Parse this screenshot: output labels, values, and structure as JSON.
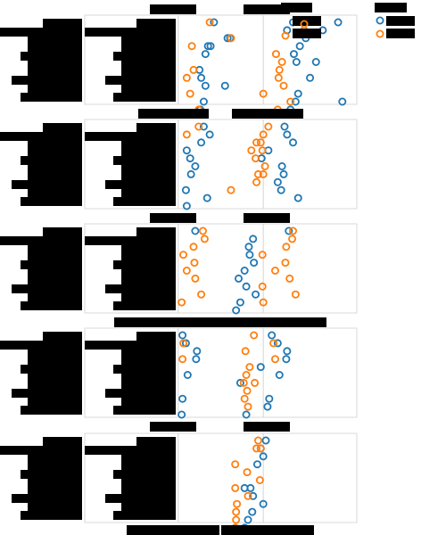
{
  "chart_data": {
    "type": "scatter",
    "colors": {
      "series_a": "#1f77b4",
      "series_b": "#ff7f0e",
      "redaction": "#000000",
      "frame": "#d9d9d9"
    },
    "legend": {
      "placement": "top-right",
      "title_redacted": true,
      "entries_redacted": true,
      "markers": [
        "series_a",
        "series_b"
      ]
    },
    "label_redaction_note_hidden": "",
    "panels": [
      {
        "series": [
          {
            "key": "series_a",
            "values": [
              [
                0.42,
                0
              ],
              [
                1.35,
                0
              ],
              [
                1.88,
                0
              ],
              [
                1.28,
                1
              ],
              [
                1.7,
                1
              ],
              [
                0.61,
                2
              ],
              [
                0.58,
                2
              ],
              [
                1.5,
                2
              ],
              [
                0.35,
                3
              ],
              [
                0.38,
                3
              ],
              [
                1.43,
                3
              ],
              [
                0.32,
                4
              ],
              [
                1.36,
                4
              ],
              [
                1.39,
                5
              ],
              [
                1.62,
                5
              ],
              [
                0.25,
                6
              ],
              [
                0.27,
                7
              ],
              [
                1.55,
                7
              ],
              [
                0.55,
                8
              ],
              [
                0.32,
                8
              ],
              [
                1.41,
                9
              ],
              [
                0.3,
                10
              ],
              [
                1.38,
                10
              ],
              [
                1.93,
                10
              ],
              [
                0.26,
                11
              ],
              [
                1.32,
                11
              ]
            ]
          },
          {
            "key": "series_b",
            "values": [
              [
                0.37,
                0
              ],
              [
                1.48,
                1
              ],
              [
                0.62,
                2
              ],
              [
                0.16,
                3
              ],
              [
                1.15,
                4
              ],
              [
                1.22,
                5
              ],
              [
                1.19,
                6
              ],
              [
                0.18,
                6
              ],
              [
                1.18,
                7
              ],
              [
                0.1,
                7
              ],
              [
                1.24,
                8
              ],
              [
                0.14,
                9
              ],
              [
                1.0,
                9
              ],
              [
                1.32,
                10
              ],
              [
                0.24,
                11
              ],
              [
                1.17,
                11
              ]
            ]
          }
        ]
      },
      {
        "series": [
          {
            "key": "series_a",
            "values": [
              [
                0.3,
                0
              ],
              [
                1.25,
                0
              ],
              [
                1.28,
                1
              ],
              [
                0.37,
                1
              ],
              [
                0.27,
                2
              ],
              [
                1.35,
                2
              ],
              [
                0.1,
                3
              ],
              [
                1.06,
                3
              ],
              [
                0.14,
                4
              ],
              [
                0.98,
                4
              ],
              [
                1.22,
                5
              ],
              [
                0.2,
                5
              ],
              [
                1.24,
                6
              ],
              [
                0.15,
                6
              ],
              [
                1.17,
                7
              ],
              [
                0.09,
                8
              ],
              [
                1.21,
                8
              ],
              [
                0.34,
                9
              ],
              [
                1.41,
                9
              ],
              [
                0.1,
                10
              ]
            ]
          },
          {
            "key": "series_b",
            "values": [
              [
                0.24,
                0
              ],
              [
                1.06,
                0
              ],
              [
                0.1,
                1
              ],
              [
                1.0,
                1
              ],
              [
                0.92,
                2
              ],
              [
                0.97,
                2
              ],
              [
                0.86,
                3
              ],
              [
                0.99,
                3
              ],
              [
                0.91,
                4
              ],
              [
                1.02,
                5
              ],
              [
                0.94,
                6
              ],
              [
                1.0,
                6
              ],
              [
                0.92,
                7
              ],
              [
                0.62,
                8
              ]
            ]
          }
        ]
      },
      {
        "series": [
          {
            "key": "series_a",
            "values": [
              [
                0.2,
                0
              ],
              [
                1.3,
                0
              ],
              [
                0.88,
                1
              ],
              [
                0.83,
                2
              ],
              [
                0.84,
                3
              ],
              [
                0.89,
                4
              ],
              [
                0.78,
                5
              ],
              [
                0.71,
                6
              ],
              [
                0.8,
                7
              ],
              [
                0.91,
                8
              ],
              [
                0.73,
                9
              ],
              [
                0.68,
                10
              ]
            ]
          },
          {
            "key": "series_b",
            "values": [
              [
                0.29,
                0
              ],
              [
                1.35,
                0
              ],
              [
                0.31,
                1
              ],
              [
                1.34,
                1
              ],
              [
                0.18,
                2
              ],
              [
                1.27,
                2
              ],
              [
                0.06,
                3
              ],
              [
                0.99,
                3
              ],
              [
                0.19,
                4
              ],
              [
                1.26,
                4
              ],
              [
                0.1,
                5
              ],
              [
                1.14,
                5
              ],
              [
                0.2,
                6
              ],
              [
                1.31,
                6
              ],
              [
                0.99,
                7
              ],
              [
                0.27,
                8
              ],
              [
                1.38,
                8
              ],
              [
                0.04,
                9
              ],
              [
                1.0,
                9
              ]
            ]
          }
        ]
      },
      {
        "series": [
          {
            "key": "series_a",
            "values": [
              [
                0.05,
                0
              ],
              [
                1.1,
                0
              ],
              [
                0.09,
                1
              ],
              [
                1.17,
                1
              ],
              [
                0.22,
                2
              ],
              [
                1.28,
                2
              ],
              [
                0.21,
                3
              ],
              [
                1.27,
                3
              ],
              [
                0.97,
                4
              ],
              [
                0.11,
                5
              ],
              [
                1.19,
                5
              ],
              [
                0.73,
                6
              ],
              [
                0.05,
                8
              ],
              [
                1.07,
                8
              ],
              [
                1.05,
                9
              ],
              [
                0.04,
                10
              ],
              [
                0.8,
                10
              ]
            ]
          },
          {
            "key": "series_b",
            "values": [
              [
                0.89,
                0
              ],
              [
                0.06,
                1
              ],
              [
                1.12,
                1
              ],
              [
                0.79,
                2
              ],
              [
                0.05,
                3
              ],
              [
                1.14,
                3
              ],
              [
                0.84,
                4
              ],
              [
                0.8,
                5
              ],
              [
                0.77,
                6
              ],
              [
                0.9,
                6
              ],
              [
                0.81,
                7
              ],
              [
                0.78,
                8
              ],
              [
                0.82,
                9
              ]
            ]
          }
        ]
      },
      {
        "series": [
          {
            "key": "series_a",
            "values": [
              [
                1.03,
                0
              ],
              [
                0.97,
                1
              ],
              [
                1.0,
                2
              ],
              [
                0.93,
                3
              ],
              [
                0.78,
                6
              ],
              [
                0.85,
                6
              ],
              [
                0.88,
                7
              ],
              [
                1.0,
                8
              ],
              [
                0.87,
                9
              ],
              [
                0.82,
                10
              ],
              [
                0.78,
                11
              ]
            ]
          },
          {
            "key": "series_b",
            "values": [
              [
                0.94,
                0
              ],
              [
                0.97,
                1
              ],
              [
                0.92,
                1
              ],
              [
                0.67,
                3
              ],
              [
                0.81,
                4
              ],
              [
                0.96,
                5
              ],
              [
                0.67,
                6
              ],
              [
                0.82,
                7
              ],
              [
                0.69,
                8
              ],
              [
                0.68,
                9
              ],
              [
                0.68,
                10
              ],
              [
                0.67,
                11
              ]
            ]
          }
        ]
      }
    ],
    "x": {
      "lim": [
        -1.1,
        2.1
      ],
      "reference_lines": [
        0,
        1
      ],
      "ticks_redacted": true
    },
    "y": {
      "categories_per_panel": 12,
      "ticks_redacted": true
    }
  }
}
